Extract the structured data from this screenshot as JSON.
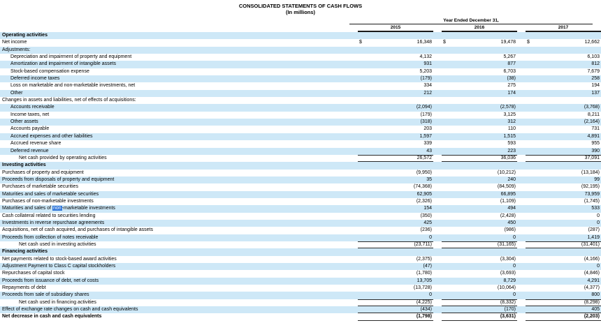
{
  "title": "CONSOLIDATED STATEMENTS OF CASH FLOWS",
  "subtitle": "(In millions)",
  "header": {
    "period_label": "Year Ended December 31,",
    "years": [
      "2015",
      "2016",
      "2017"
    ]
  },
  "currency_symbol": "$",
  "colors": {
    "row_shade": "#cee8f7",
    "highlight_bg": "#2e74d9",
    "highlight_text": "#ffffff",
    "rule_dark": "#2b2b2b"
  },
  "table": {
    "rows": [
      {
        "label": "Operating activities",
        "indent": 0,
        "bold": true,
        "values": null
      },
      {
        "label": "Net income",
        "indent": 0,
        "values": [
          "16,348",
          "19,478",
          "12,662"
        ],
        "dollar": true
      },
      {
        "label": "Adjustments:",
        "indent": 0,
        "values": null
      },
      {
        "label": "Depreciation and impairment of property and equipment",
        "indent": 1,
        "values": [
          "4,132",
          "5,267",
          "6,103"
        ]
      },
      {
        "label": "Amortization and impairment of intangible assets",
        "indent": 1,
        "values": [
          "931",
          "877",
          "812"
        ]
      },
      {
        "label": "Stock-based compensation expense",
        "indent": 1,
        "values": [
          "5,203",
          "6,703",
          "7,679"
        ]
      },
      {
        "label": "Deferred income taxes",
        "indent": 1,
        "values": [
          "(179)",
          "(38)",
          "258"
        ]
      },
      {
        "label": "Loss on marketable and non-marketable investments, net",
        "indent": 1,
        "values": [
          "334",
          "275",
          "194"
        ]
      },
      {
        "label": "Other",
        "indent": 1,
        "values": [
          "212",
          "174",
          "137"
        ]
      },
      {
        "label": "Changes in assets and liabilities, net of effects of acquisitions:",
        "indent": 0,
        "values": null
      },
      {
        "label": "Accounts receivable",
        "indent": 1,
        "values": [
          "(2,094)",
          "(2,578)",
          "(3,768)"
        ]
      },
      {
        "label": "Income taxes, net",
        "indent": 1,
        "values": [
          "(179)",
          "3,125",
          "8,211"
        ]
      },
      {
        "label": "Other assets",
        "indent": 1,
        "values": [
          "(318)",
          "312",
          "(2,164)"
        ]
      },
      {
        "label": "Accounts payable",
        "indent": 1,
        "values": [
          "203",
          "110",
          "731"
        ]
      },
      {
        "label": "Accrued expenses and other liabilities",
        "indent": 1,
        "values": [
          "1,597",
          "1,515",
          "4,891"
        ]
      },
      {
        "label": "Accrued revenue share",
        "indent": 1,
        "values": [
          "339",
          "593",
          "955"
        ]
      },
      {
        "label": "Deferred revenue",
        "indent": 1,
        "values": [
          "43",
          "223",
          "390"
        ]
      },
      {
        "label": "Net cash provided by operating activities",
        "indent": 2,
        "values": [
          "26,572",
          "36,036",
          "37,091"
        ],
        "total": true
      },
      {
        "label": "Investing activities",
        "indent": 0,
        "bold": true,
        "values": null
      },
      {
        "label": "Purchases of property and equipment",
        "indent": 0,
        "values": [
          "(9,950)",
          "(10,212)",
          "(13,184)"
        ]
      },
      {
        "label": "Proceeds from disposals of property and equipment",
        "indent": 0,
        "values": [
          "35",
          "240",
          "99"
        ]
      },
      {
        "label": "Purchases of marketable securities",
        "indent": 0,
        "values": [
          "(74,368)",
          "(84,509)",
          "(92,195)"
        ]
      },
      {
        "label": "Maturities and sales of marketable securities",
        "indent": 0,
        "values": [
          "62,905",
          "66,895",
          "73,959"
        ]
      },
      {
        "label": "Purchases of non-marketable investments",
        "indent": 0,
        "values": [
          "(2,326)",
          "(1,109)",
          "(1,745)"
        ]
      },
      {
        "label": "Maturities and sales of non-marketable investments",
        "indent": 0,
        "values": [
          "154",
          "494",
          "533"
        ],
        "highlight": {
          "pre": "Maturities and sales of ",
          "match": "non",
          "post": "-marketable investments"
        }
      },
      {
        "label": "Cash collateral related to securities lending",
        "indent": 0,
        "values": [
          "(350)",
          "(2,428)",
          "0"
        ]
      },
      {
        "label": "Investments in reverse repurchase agreements",
        "indent": 0,
        "values": [
          "425",
          "450",
          "0"
        ]
      },
      {
        "label": "Acquisitions, net of cash acquired, and purchases of intangible assets",
        "indent": 0,
        "values": [
          "(236)",
          "(986)",
          "(287)"
        ]
      },
      {
        "label": "Proceeds from collection of notes receivable",
        "indent": 0,
        "values": [
          "0",
          "0",
          "1,419"
        ]
      },
      {
        "label": "Net cash used in investing activities",
        "indent": 2,
        "values": [
          "(23,711)",
          "(31,165)",
          "(31,401)"
        ],
        "total": true
      },
      {
        "label": "Financing activities",
        "indent": 0,
        "bold": true,
        "values": null
      },
      {
        "label": "Net payments related to stock-based award activities",
        "indent": 0,
        "values": [
          "(2,375)",
          "(3,304)",
          "(4,166)"
        ]
      },
      {
        "label": "Adjustment Payment to Class C capital stockholders",
        "indent": 0,
        "values": [
          "(47)",
          "0",
          "0"
        ]
      },
      {
        "label": "Repurchases of capital stock",
        "indent": 0,
        "values": [
          "(1,780)",
          "(3,693)",
          "(4,846)"
        ]
      },
      {
        "label": "Proceeds from issuance of debt, net of costs",
        "indent": 0,
        "values": [
          "13,705",
          "8,729",
          "4,291"
        ]
      },
      {
        "label": "Repayments of debt",
        "indent": 0,
        "values": [
          "(13,728)",
          "(10,064)",
          "(4,377)"
        ]
      },
      {
        "label": "Proceeds from sale of subsidiary shares",
        "indent": 0,
        "values": [
          "0",
          "0",
          "800"
        ]
      },
      {
        "label": "Net cash used in financing activities",
        "indent": 2,
        "values": [
          "(4,225)",
          "(8,332)",
          "(8,298)"
        ],
        "total": true
      },
      {
        "label": "Effect of exchange rate changes on cash and cash equivalents",
        "indent": 0,
        "values": [
          "(434)",
          "(170)",
          "405"
        ],
        "underline": true
      },
      {
        "label": "Net decrease in cash and cash equivalents",
        "indent": 0,
        "bold": true,
        "values": [
          "(1,798)",
          "(3,631)",
          "(2,203)"
        ],
        "underline": true
      }
    ]
  }
}
